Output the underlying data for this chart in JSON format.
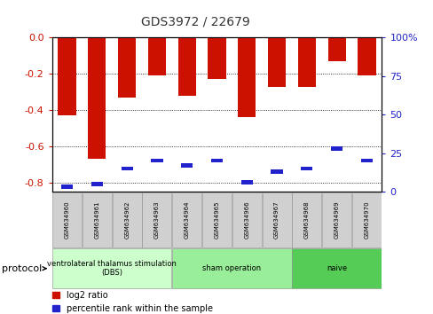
{
  "title": "GDS3972 / 22679",
  "samples": [
    "GSM634960",
    "GSM634961",
    "GSM634962",
    "GSM634963",
    "GSM634964",
    "GSM634965",
    "GSM634966",
    "GSM634967",
    "GSM634968",
    "GSM634969",
    "GSM634970"
  ],
  "log2_ratio": [
    -0.43,
    -0.67,
    -0.33,
    -0.21,
    -0.32,
    -0.23,
    -0.44,
    -0.27,
    -0.27,
    -0.13,
    -0.21
  ],
  "percentile_rank": [
    3,
    5,
    15,
    20,
    17,
    20,
    6,
    13,
    15,
    28,
    20
  ],
  "bar_color": "#cc1100",
  "blue_color": "#2222cc",
  "ylim_left": [
    -0.85,
    0.0
  ],
  "ylim_right": [
    0,
    100
  ],
  "yticks_left": [
    0.0,
    -0.2,
    -0.4,
    -0.6,
    -0.8
  ],
  "yticks_right": [
    0,
    25,
    50,
    75,
    100
  ],
  "protocol_label": "protocol",
  "legend_red": "log2 ratio",
  "legend_blue": "percentile rank within the sample",
  "bar_width": 0.6,
  "tick_label_color_left": "#cc1100",
  "tick_label_color_right": "#2222cc",
  "group_ranges": [
    [
      0,
      3
    ],
    [
      4,
      7
    ],
    [
      8,
      10
    ]
  ],
  "group_labels": [
    "ventrolateral thalamus stimulation\n(DBS)",
    "sham operation",
    "naive"
  ],
  "group_colors": [
    "#ccffcc",
    "#99ee99",
    "#55cc55"
  ]
}
